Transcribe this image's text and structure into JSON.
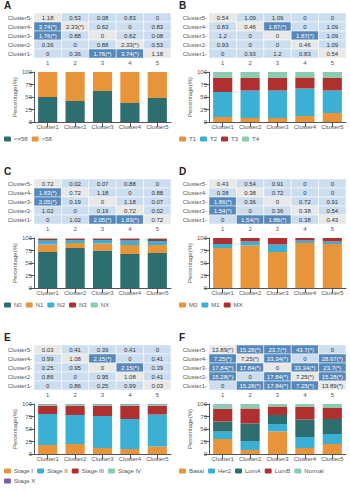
{
  "chart_data": [
    {
      "type": "heatmap",
      "title": "A",
      "x": [
        "1",
        "2",
        "3",
        "4",
        "5"
      ],
      "y": [
        "Cluster5-",
        "Cluster4-",
        "Cluster3-",
        "Cluster2-",
        "Cluster1-"
      ],
      "values": [
        [
          1.18,
          0.53,
          0.08,
          0.83,
          0
        ],
        [
          3.74,
          2.33,
          0.62,
          0,
          0.83
        ],
        [
          1.76,
          0.88,
          0,
          0.62,
          0.08
        ],
        [
          0.36,
          0,
          0.88,
          2.33,
          0.53
        ],
        [
          0,
          0.36,
          1.76,
          3.74,
          1.18
        ]
      ],
      "value_labels": [
        [
          "1.18",
          "0.53",
          "0.08",
          "0.83",
          "0"
        ],
        [
          "3.74(*)",
          "2.33(*)",
          "0.62",
          "0",
          "0.83"
        ],
        [
          "1.76(*)",
          "0.88",
          "0",
          "0.62",
          "0.08"
        ],
        [
          "0.36",
          "0",
          "0.88",
          "2.33(*)",
          "0.53"
        ],
        [
          "0",
          "0.36",
          "1.76(*)",
          "3.74(*)",
          "1.18"
        ]
      ],
      "colors": [
        [
          "#e8e8e8",
          "#ccddf0",
          "#ccddf0",
          "#ccddf0",
          "#ccddf0"
        ],
        [
          "#5588bb",
          "#e8e8e8",
          "#ccddf0",
          "#ccddf0",
          "#ccddf0"
        ],
        [
          "#5588bb",
          "#ccddf0",
          "#e8e8e8",
          "#ccddf0",
          "#ccddf0"
        ],
        [
          "#ccddf0",
          "#ccddf0",
          "#ccddf0",
          "#e8e8e8",
          "#ccddf0"
        ],
        [
          "#ccddf0",
          "#ccddf0",
          "#5588bb",
          "#5588bb",
          "#e8e8e8"
        ]
      ],
      "data_labels": true
    },
    {
      "type": "bar",
      "stacked": true,
      "categories": [
        "Cluster1",
        "Cluster2",
        "Cluster3",
        "Cluster4",
        "Cluster5"
      ],
      "series": [
        {
          "name": "<=58",
          "color": "#2d6e6e",
          "values": [
            50,
            42,
            62,
            38,
            48
          ]
        },
        {
          "name": ">58",
          "color": "#e8943a",
          "values": [
            50,
            58,
            38,
            62,
            52
          ]
        }
      ],
      "ylabel": "Percentage(%)",
      "ylim": [
        0,
        100
      ],
      "yticks": [
        0,
        25,
        50,
        75,
        100
      ],
      "grid": false,
      "legend": "bottom"
    },
    {
      "type": "heatmap",
      "title": "B",
      "x": [
        "1",
        "2",
        "3",
        "4",
        "5"
      ],
      "y": [
        "Cluster5-",
        "Cluster4-",
        "Cluster3-",
        "Cluster2-",
        "Cluster1-"
      ],
      "values": [
        [
          0.54,
          1.09,
          1.09,
          0,
          0
        ],
        [
          0.83,
          0.46,
          1.87,
          0,
          1.09
        ],
        [
          1.2,
          0,
          0,
          1.87,
          1.09
        ],
        [
          0.93,
          0,
          0,
          0.46,
          1.09
        ],
        [
          0,
          0.93,
          1.2,
          0.83,
          0.54
        ]
      ],
      "value_labels": [
        [
          "0.54",
          "1.09",
          "1.09",
          "0",
          "0"
        ],
        [
          "0.83",
          "0.46",
          "1.87(*)",
          "0",
          "1.09"
        ],
        [
          "1.2",
          "0",
          "0",
          "1.87(*)",
          "1.09"
        ],
        [
          "0.93",
          "0",
          "0",
          "0.46",
          "1.09"
        ],
        [
          "0",
          "0.93",
          "1.2",
          "0.83",
          "0.54"
        ]
      ],
      "colors": [
        [
          "#e8e8e8",
          "#ccddf0",
          "#ccddf0",
          "#ccddf0",
          "#ccddf0"
        ],
        [
          "#ccddf0",
          "#e8e8e8",
          "#5588bb",
          "#ccddf0",
          "#ccddf0"
        ],
        [
          "#ccddf0",
          "#ccddf0",
          "#e8e8e8",
          "#5588bb",
          "#ccddf0"
        ],
        [
          "#ccddf0",
          "#ccddf0",
          "#ccddf0",
          "#e8e8e8",
          "#ccddf0"
        ],
        [
          "#ccddf0",
          "#ccddf0",
          "#ccddf0",
          "#ccddf0",
          "#e8e8e8"
        ]
      ],
      "data_labels": true
    },
    {
      "type": "bar",
      "stacked": true,
      "categories": [
        "Cluster1",
        "Cluster2",
        "Cluster3",
        "Cluster4",
        "Cluster5"
      ],
      "series": [
        {
          "name": "T1",
          "color": "#e8943a",
          "values": [
            10,
            8,
            8,
            12,
            18
          ]
        },
        {
          "name": "T2",
          "color": "#3bafd4",
          "values": [
            50,
            55,
            55,
            55,
            45
          ]
        },
        {
          "name": "T3",
          "color": "#b03030",
          "values": [
            28,
            25,
            25,
            22,
            25
          ]
        },
        {
          "name": "T4",
          "color": "#8bcbb0",
          "values": [
            12,
            12,
            12,
            11,
            12
          ]
        }
      ],
      "ylabel": "Percentage(%)",
      "ylim": [
        0,
        100
      ],
      "yticks": [
        0,
        25,
        50,
        75,
        100
      ],
      "grid": false,
      "legend": "bottom"
    },
    {
      "type": "heatmap",
      "title": "C",
      "x": [
        "1",
        "2",
        "3",
        "4",
        "5"
      ],
      "y": [
        "Cluster5-",
        "Cluster4-",
        "Cluster3-",
        "Cluster2-",
        "Cluster1-"
      ],
      "values": [
        [
          0.72,
          0.02,
          0.07,
          0.88,
          0
        ],
        [
          1.83,
          0.72,
          1.18,
          0,
          0.88
        ],
        [
          2.05,
          0.19,
          0,
          1.18,
          0.07
        ],
        [
          1.02,
          0,
          0.19,
          0.72,
          0.02
        ],
        [
          0,
          1.02,
          2.05,
          1.83,
          0.72
        ]
      ],
      "value_labels": [
        [
          "0.72",
          "0.02",
          "0.07",
          "0.88",
          "0"
        ],
        [
          "1.83(*)",
          "0.72",
          "1.18",
          "0",
          "0.88"
        ],
        [
          "2.05(*)",
          "0.19",
          "0",
          "1.18",
          "0.07"
        ],
        [
          "1.02",
          "0",
          "0.19",
          "0.72",
          "0.02"
        ],
        [
          "0",
          "1.02",
          "2.05(*)",
          "1.83(*)",
          "0.72"
        ]
      ],
      "colors": [
        [
          "#e8e8e8",
          "#ccddf0",
          "#ccddf0",
          "#ccddf0",
          "#ccddf0"
        ],
        [
          "#5588bb",
          "#e8e8e8",
          "#ccddf0",
          "#ccddf0",
          "#ccddf0"
        ],
        [
          "#5588bb",
          "#ccddf0",
          "#e8e8e8",
          "#ccddf0",
          "#ccddf0"
        ],
        [
          "#ccddf0",
          "#ccddf0",
          "#ccddf0",
          "#e8e8e8",
          "#ccddf0"
        ],
        [
          "#ccddf0",
          "#ccddf0",
          "#5588bb",
          "#5588bb",
          "#e8e8e8"
        ]
      ],
      "data_labels": true
    },
    {
      "type": "bar",
      "stacked": true,
      "categories": [
        "Cluster1",
        "Cluster2",
        "Cluster3",
        "Cluster4",
        "Cluster5"
      ],
      "series": [
        {
          "name": "N0",
          "color": "#2d6e6e",
          "values": [
            72,
            80,
            75,
            68,
            70
          ]
        },
        {
          "name": "N1",
          "color": "#e8943a",
          "values": [
            15,
            10,
            14,
            18,
            16
          ]
        },
        {
          "name": "N2",
          "color": "#3bafd4",
          "values": [
            8,
            6,
            7,
            9,
            8
          ]
        },
        {
          "name": "N3",
          "color": "#b03030",
          "values": [
            3,
            3,
            3,
            4,
            4
          ]
        },
        {
          "name": "NX",
          "color": "#8bcbb0",
          "values": [
            2,
            1,
            1,
            1,
            2
          ]
        }
      ],
      "ylabel": "Percentage(%)",
      "ylim": [
        0,
        100
      ],
      "yticks": [
        0,
        25,
        50,
        75,
        100
      ],
      "grid": false,
      "legend": "bottom"
    },
    {
      "type": "heatmap",
      "title": "D",
      "x": [
        "1",
        "2",
        "3",
        "4",
        "5"
      ],
      "y": [
        "Cluster5-",
        "Cluster4-",
        "Cluster3-",
        "Cluster2-",
        "Cluster1-"
      ],
      "values": [
        [
          0.43,
          0.54,
          0.91,
          0,
          0
        ],
        [
          0.38,
          0.38,
          0.72,
          0,
          0
        ],
        [
          1.86,
          0.36,
          0,
          0.72,
          0.91
        ],
        [
          1.54,
          0,
          0.36,
          0.38,
          0.54
        ],
        [
          0,
          1.54,
          1.86,
          0.38,
          0.43
        ]
      ],
      "value_labels": [
        [
          "0.43",
          "0.54",
          "0.91",
          "0",
          "0"
        ],
        [
          "0.38",
          "0.38",
          "0.72",
          "0",
          "0"
        ],
        [
          "1.86(*)",
          "0.36",
          "0",
          "0.72",
          "0.91"
        ],
        [
          "1.54(*)",
          "0",
          "0.36",
          "0.38",
          "0.54"
        ],
        [
          "0",
          "1.54(*)",
          "1.86(*)",
          "0.38",
          "0.43"
        ]
      ],
      "colors": [
        [
          "#e8e8e8",
          "#ccddf0",
          "#ccddf0",
          "#ccddf0",
          "#ccddf0"
        ],
        [
          "#ccddf0",
          "#e8e8e8",
          "#ccddf0",
          "#ccddf0",
          "#ccddf0"
        ],
        [
          "#5588bb",
          "#ccddf0",
          "#e8e8e8",
          "#ccddf0",
          "#ccddf0"
        ],
        [
          "#5588bb",
          "#ccddf0",
          "#ccddf0",
          "#e8e8e8",
          "#ccddf0"
        ],
        [
          "#ccddf0",
          "#5588bb",
          "#5588bb",
          "#ccddf0",
          "#e8e8e8"
        ]
      ],
      "data_labels": true
    },
    {
      "type": "bar",
      "stacked": true,
      "categories": [
        "Cluster1",
        "Cluster2",
        "Cluster3",
        "Cluster4",
        "Cluster5"
      ],
      "series": [
        {
          "name": "M0",
          "color": "#e8943a",
          "values": [
            80,
            85,
            72,
            90,
            88
          ]
        },
        {
          "name": "M1",
          "color": "#3bafd4",
          "values": [
            8,
            8,
            15,
            5,
            5
          ]
        },
        {
          "name": "MX",
          "color": "#b03030",
          "values": [
            12,
            7,
            13,
            5,
            7
          ]
        }
      ],
      "ylabel": "Percentage(%)",
      "ylim": [
        0,
        100
      ],
      "yticks": [
        0,
        25,
        50,
        75,
        100
      ],
      "grid": false,
      "legend": "bottom"
    },
    {
      "type": "heatmap",
      "title": "E",
      "x": [
        "1",
        "2",
        "3",
        "4",
        "5"
      ],
      "y": [
        "Cluster5-",
        "Cluster4-",
        "Cluster3-",
        "Cluster2-",
        "Cluster1-"
      ],
      "values": [
        [
          0.03,
          0.41,
          0.39,
          0.41,
          0
        ],
        [
          0.99,
          1.08,
          2.15,
          0,
          0.41
        ],
        [
          0.25,
          0.95,
          0,
          2.15,
          0.39
        ],
        [
          0.86,
          0,
          0.95,
          1.08,
          0.41
        ],
        [
          0,
          0.86,
          0.25,
          0.99,
          0.03
        ]
      ],
      "value_labels": [
        [
          "0.03",
          "0.41",
          "0.39",
          "0.41",
          "0"
        ],
        [
          "0.99",
          "1.08",
          "2.15(*)",
          "0",
          "0.41"
        ],
        [
          "0.25",
          "0.95",
          "0",
          "2.15(*)",
          "0.39"
        ],
        [
          "0.86",
          "0",
          "0.95",
          "1.08",
          "0.41"
        ],
        [
          "0",
          "0.86",
          "0.25",
          "0.99",
          "0.03"
        ]
      ],
      "colors": [
        [
          "#e8e8e8",
          "#ccddf0",
          "#ccddf0",
          "#ccddf0",
          "#ccddf0"
        ],
        [
          "#ccddf0",
          "#e8e8e8",
          "#5588bb",
          "#ccddf0",
          "#ccddf0"
        ],
        [
          "#ccddf0",
          "#ccddf0",
          "#e8e8e8",
          "#5588bb",
          "#ccddf0"
        ],
        [
          "#ccddf0",
          "#ccddf0",
          "#ccddf0",
          "#e8e8e8",
          "#ccddf0"
        ],
        [
          "#ccddf0",
          "#ccddf0",
          "#ccddf0",
          "#ccddf0",
          "#e8e8e8"
        ]
      ],
      "data_labels": true
    },
    {
      "type": "bar",
      "stacked": true,
      "categories": [
        "Cluster1",
        "Cluster2",
        "Cluster3",
        "Cluster4",
        "Cluster5"
      ],
      "series": [
        {
          "name": "Stage I",
          "color": "#e8943a",
          "values": [
            18,
            20,
            12,
            10,
            15
          ]
        },
        {
          "name": "Stage II",
          "color": "#3bafd4",
          "values": [
            62,
            58,
            64,
            60,
            64
          ]
        },
        {
          "name": "Stage III",
          "color": "#b03030",
          "values": [
            16,
            18,
            20,
            26,
            17
          ]
        },
        {
          "name": "Stage IV",
          "color": "#8bcbb0",
          "values": [
            3,
            3,
            3,
            3,
            3
          ]
        },
        {
          "name": "Stage X",
          "color": "#7b5ea7",
          "values": [
            1,
            1,
            1,
            1,
            1
          ]
        }
      ],
      "ylabel": "Percentage(%)",
      "ylim": [
        0,
        100
      ],
      "yticks": [
        0,
        25,
        50,
        75,
        100
      ],
      "grid": false,
      "legend": "bottom"
    },
    {
      "type": "heatmap",
      "title": "F",
      "x": [
        "1",
        "2",
        "3",
        "4",
        "5"
      ],
      "y": [
        "Cluster5-",
        "Cluster4-",
        "Cluster3-",
        "Cluster2-",
        "Cluster1-"
      ],
      "values": [
        [
          13.89,
          15.28,
          23.7,
          43.7,
          0
        ],
        [
          7.25,
          7.25,
          33.34,
          0,
          28.67
        ],
        [
          17.84,
          17.84,
          0,
          33.34,
          23.7
        ],
        [
          15.28,
          0,
          17.84,
          7.25,
          15.28
        ],
        [
          0,
          15.28,
          17.84,
          7.25,
          13.89
        ]
      ],
      "value_labels": [
        [
          "13.89(*)",
          "15.28(*)",
          "23.7(*)",
          "43.7(*)",
          "0"
        ],
        [
          "7.25(*)",
          "7.25(*)",
          "33.34(*)",
          "0",
          "28.67(*)"
        ],
        [
          "17.84(*)",
          "17.84(*)",
          "0",
          "33.34(*)",
          "23.7(*)"
        ],
        [
          "15.28(*)",
          "0",
          "17.84(*)",
          "7.25(*)",
          "15.28(*)"
        ],
        [
          "0",
          "15.28(*)",
          "17.84(*)",
          "7.25(*)",
          "13.89(*)"
        ]
      ],
      "colors": [
        [
          "#e8e8e8",
          "#5588bb",
          "#5588bb",
          "#5588bb",
          "#ccddf0"
        ],
        [
          "#5588bb",
          "#e8e8e8",
          "#5588bb",
          "#ccddf0",
          "#5588bb"
        ],
        [
          "#5588bb",
          "#5588bb",
          "#e8e8e8",
          "#5588bb",
          "#5588bb"
        ],
        [
          "#5588bb",
          "#ccddf0",
          "#5588bb",
          "#e8e8e8",
          "#5588bb"
        ],
        [
          "#ccddf0",
          "#5588bb",
          "#5588bb",
          "#5588bb",
          "#e8e8e8"
        ]
      ],
      "data_labels": true
    },
    {
      "type": "bar",
      "stacked": true,
      "categories": [
        "Cluster1",
        "Cluster2",
        "Cluster3",
        "Cluster4",
        "Cluster5"
      ],
      "series": [
        {
          "name": "Basal",
          "color": "#e8943a",
          "values": [
            30,
            8,
            45,
            12,
            20
          ]
        },
        {
          "name": "Her2",
          "color": "#3bafd4",
          "values": [
            15,
            18,
            15,
            22,
            20
          ]
        },
        {
          "name": "LumA",
          "color": "#2d6e6e",
          "values": [
            20,
            35,
            18,
            35,
            30
          ]
        },
        {
          "name": "LumB",
          "color": "#b03030",
          "values": [
            25,
            30,
            17,
            25,
            22
          ]
        },
        {
          "name": "Normal",
          "color": "#8bcbb0",
          "values": [
            10,
            9,
            5,
            6,
            8
          ]
        }
      ],
      "ylabel": "Percentage(%)",
      "ylim": [
        0,
        100
      ],
      "yticks": [
        0,
        25,
        50,
        75,
        100
      ],
      "grid": false,
      "legend": "bottom"
    }
  ]
}
